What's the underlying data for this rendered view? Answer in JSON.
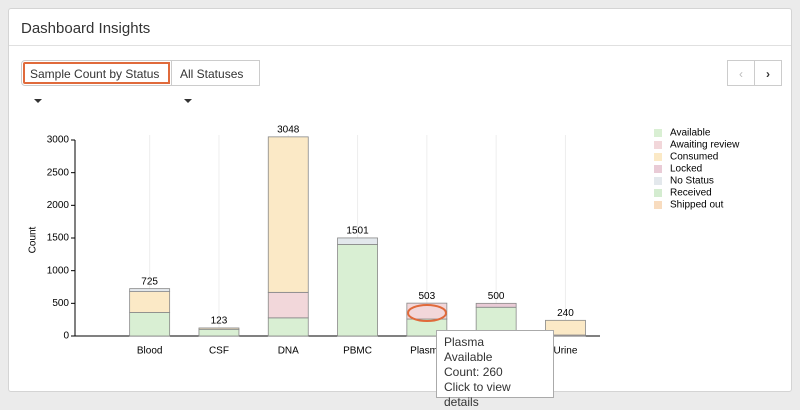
{
  "panel": {
    "title": "Dashboard Insights",
    "chart_selector": "Sample Count by Status",
    "status_filter": "All Statuses"
  },
  "chart_data": {
    "type": "stacked-bar",
    "ylabel": "Count",
    "categories": [
      "Blood",
      "CSF",
      "DNA",
      "PBMC",
      "Plasma",
      null,
      "Urine"
    ],
    "series": [
      {
        "name": "Available",
        "color": "#d9efd3",
        "values": [
          360,
          103,
          278,
          1401,
          260,
          440,
          0
        ]
      },
      {
        "name": "Awaiting review",
        "color": "#f2d7da",
        "values": [
          0,
          0,
          390,
          0,
          243,
          0,
          15
        ]
      },
      {
        "name": "Consumed",
        "color": "#fbe9c6",
        "values": [
          320,
          20,
          2380,
          0,
          0,
          0,
          225
        ]
      },
      {
        "name": "Locked",
        "color": "#e9cbd6",
        "values": [
          0,
          0,
          0,
          0,
          0,
          60,
          0
        ]
      },
      {
        "name": "No Status",
        "color": "#e3e8ec",
        "values": [
          45,
          0,
          0,
          100,
          0,
          0,
          0
        ]
      },
      {
        "name": "Received",
        "color": "#d4ecd0",
        "values": [
          0,
          0,
          0,
          0,
          0,
          0,
          0
        ]
      },
      {
        "name": "Shipped out",
        "color": "#f8dcbf",
        "values": [
          0,
          0,
          0,
          0,
          0,
          0,
          0
        ]
      }
    ],
    "totals": [
      725,
      123,
      3048,
      1501,
      503,
      500,
      240
    ],
    "ylim": [
      0,
      3000
    ],
    "yticks": [
      0,
      500,
      1000,
      1500,
      2000,
      2500,
      3000
    ],
    "legend": "right"
  },
  "tooltip": {
    "title": "Plasma",
    "status": "Available",
    "count": "Count: 260",
    "hint": "Click to view details"
  }
}
